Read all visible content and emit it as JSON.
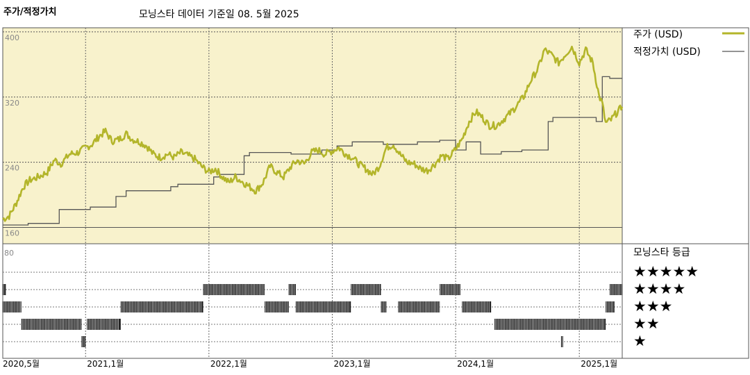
{
  "header": {
    "title": "주가/적정가치",
    "subtitle": "모닝스타 데이터 기준일 08. 5월 2025"
  },
  "legend": {
    "price_label": "주가 (USD)",
    "fair_label": "적정가치 (USD)",
    "rating_title": "모닝스타 등급",
    "rating_levels": [
      "★★★★★",
      "★★★★",
      "★★★",
      "★★",
      "★"
    ]
  },
  "colors": {
    "price": "#b3b52a",
    "fair": "#555555",
    "upper_panel_bg": "#f8f2cc",
    "rating_bar": "#222222"
  },
  "chart_data": [
    {
      "type": "line",
      "title": "",
      "y_ticks": [
        400,
        320,
        240,
        160
      ],
      "ylim": [
        140,
        405
      ],
      "xlim": [
        "2020-05-01",
        "2025-05-08"
      ],
      "x_tick_labels": [
        {
          "date": "2020-05-01",
          "label": "2020,5월"
        },
        {
          "date": "2021-01-01",
          "label": "2021,1월"
        },
        {
          "date": "2022-01-01",
          "label": "2022,1월"
        },
        {
          "date": "2023-01-01",
          "label": "2023,1월"
        },
        {
          "date": "2024-01-01",
          "label": "2024,1월"
        },
        {
          "date": "2025-01-01",
          "label": "2025,1월"
        }
      ],
      "grid": true,
      "series": [
        {
          "name": "주가 (USD)",
          "style": "line",
          "points": [
            [
              "2020-05-01",
              170
            ],
            [
              "2020-05-20",
              174
            ],
            [
              "2020-06-10",
              190
            ],
            [
              "2020-07-01",
              210
            ],
            [
              "2020-07-20",
              218
            ],
            [
              "2020-08-15",
              222
            ],
            [
              "2020-09-10",
              228
            ],
            [
              "2020-10-01",
              243
            ],
            [
              "2020-10-20",
              238
            ],
            [
              "2020-11-15",
              250
            ],
            [
              "2020-12-10",
              252
            ],
            [
              "2021-01-01",
              258
            ],
            [
              "2021-01-20",
              262
            ],
            [
              "2021-02-10",
              272
            ],
            [
              "2021-03-01",
              278
            ],
            [
              "2021-03-20",
              266
            ],
            [
              "2021-04-10",
              268
            ],
            [
              "2021-05-01",
              275
            ],
            [
              "2021-05-20",
              268
            ],
            [
              "2021-06-10",
              265
            ],
            [
              "2021-07-01",
              260
            ],
            [
              "2021-07-20",
              250
            ],
            [
              "2021-08-10",
              246
            ],
            [
              "2021-09-01",
              250
            ],
            [
              "2021-09-20",
              246
            ],
            [
              "2021-10-10",
              252
            ],
            [
              "2021-11-01",
              248
            ],
            [
              "2021-11-20",
              244
            ],
            [
              "2021-12-10",
              235
            ],
            [
              "2022-01-01",
              228
            ],
            [
              "2022-01-20",
              232
            ],
            [
              "2022-02-10",
              222
            ],
            [
              "2022-03-01",
              215
            ],
            [
              "2022-03-20",
              222
            ],
            [
              "2022-04-10",
              216
            ],
            [
              "2022-05-01",
              210
            ],
            [
              "2022-05-20",
              205
            ],
            [
              "2022-06-10",
              215
            ],
            [
              "2022-07-01",
              235
            ],
            [
              "2022-07-20",
              228
            ],
            [
              "2022-08-10",
              222
            ],
            [
              "2022-09-01",
              235
            ],
            [
              "2022-09-20",
              242
            ],
            [
              "2022-10-10",
              238
            ],
            [
              "2022-11-01",
              252
            ],
            [
              "2022-11-20",
              255
            ],
            [
              "2022-12-10",
              250
            ],
            [
              "2023-01-01",
              254
            ],
            [
              "2023-01-20",
              258
            ],
            [
              "2023-02-10",
              250
            ],
            [
              "2023-03-01",
              246
            ],
            [
              "2023-03-20",
              238
            ],
            [
              "2023-04-10",
              232
            ],
            [
              "2023-05-01",
              225
            ],
            [
              "2023-05-20",
              235
            ],
            [
              "2023-06-10",
              258
            ],
            [
              "2023-07-01",
              262
            ],
            [
              "2023-07-20",
              250
            ],
            [
              "2023-08-10",
              240
            ],
            [
              "2023-09-01",
              238
            ],
            [
              "2023-09-20",
              232
            ],
            [
              "2023-10-10",
              230
            ],
            [
              "2023-11-01",
              238
            ],
            [
              "2023-11-20",
              248
            ],
            [
              "2023-12-10",
              244
            ],
            [
              "2024-01-01",
              256
            ],
            [
              "2024-01-20",
              268
            ],
            [
              "2024-02-10",
              290
            ],
            [
              "2024-03-01",
              302
            ],
            [
              "2024-03-20",
              295
            ],
            [
              "2024-04-10",
              285
            ],
            [
              "2024-05-01",
              285
            ],
            [
              "2024-05-20",
              292
            ],
            [
              "2024-06-10",
              300
            ],
            [
              "2024-07-01",
              310
            ],
            [
              "2024-07-20",
              320
            ],
            [
              "2024-08-10",
              340
            ],
            [
              "2024-09-01",
              355
            ],
            [
              "2024-09-20",
              378
            ],
            [
              "2024-10-10",
              372
            ],
            [
              "2024-11-01",
              362
            ],
            [
              "2024-11-20",
              372
            ],
            [
              "2024-12-10",
              382
            ],
            [
              "2025-01-01",
              362
            ],
            [
              "2025-01-20",
              378
            ],
            [
              "2025-02-10",
              362
            ],
            [
              "2025-02-28",
              322
            ],
            [
              "2025-03-10",
              312
            ],
            [
              "2025-03-20",
              288
            ],
            [
              "2025-04-05",
              292
            ],
            [
              "2025-04-20",
              300
            ],
            [
              "2025-05-08",
              308
            ]
          ]
        },
        {
          "name": "적정가치 (USD)",
          "style": "step",
          "points": [
            [
              "2020-05-01",
              163
            ],
            [
              "2020-07-15",
              165
            ],
            [
              "2020-10-15",
              182
            ],
            [
              "2021-01-01",
              182
            ],
            [
              "2021-01-15",
              185
            ],
            [
              "2021-04-01",
              198
            ],
            [
              "2021-05-01",
              205
            ],
            [
              "2021-09-10",
              210
            ],
            [
              "2021-10-01",
              213
            ],
            [
              "2022-01-15",
              222
            ],
            [
              "2022-02-01",
              225
            ],
            [
              "2022-04-15",
              248
            ],
            [
              "2022-05-01",
              252
            ],
            [
              "2022-09-01",
              250
            ],
            [
              "2022-12-01",
              255
            ],
            [
              "2023-01-15",
              260
            ],
            [
              "2023-03-01",
              265
            ],
            [
              "2023-06-01",
              262
            ],
            [
              "2023-09-10",
              265
            ],
            [
              "2023-11-15",
              267
            ],
            [
              "2024-01-01",
              255
            ],
            [
              "2024-02-01",
              265
            ],
            [
              "2024-03-15",
              250
            ],
            [
              "2024-05-15",
              253
            ],
            [
              "2024-07-15",
              255
            ],
            [
              "2024-10-01",
              290
            ],
            [
              "2024-10-15",
              295
            ],
            [
              "2025-02-20",
              290
            ],
            [
              "2025-03-10",
              345
            ],
            [
              "2025-04-01",
              343
            ],
            [
              "2025-05-08",
              343
            ]
          ]
        }
      ]
    },
    {
      "type": "rating_timeline",
      "title": "모닝스타 등급",
      "y_top_label": "80",
      "levels": [
        5,
        4,
        3,
        2,
        1
      ],
      "segments": [
        {
          "rating": 4,
          "start": "2020-05-01",
          "end": "2020-05-10"
        },
        {
          "rating": 3,
          "start": "2020-05-01",
          "end": "2020-06-25"
        },
        {
          "rating": 2,
          "start": "2020-06-25",
          "end": "2020-12-20"
        },
        {
          "rating": 1,
          "start": "2020-12-20",
          "end": "2021-01-01"
        },
        {
          "rating": 2,
          "start": "2021-01-05",
          "end": "2021-04-15"
        },
        {
          "rating": 3,
          "start": "2021-04-15",
          "end": "2021-12-15"
        },
        {
          "rating": 4,
          "start": "2021-12-15",
          "end": "2022-06-15"
        },
        {
          "rating": 3,
          "start": "2022-06-15",
          "end": "2022-08-25"
        },
        {
          "rating": 4,
          "start": "2022-08-25",
          "end": "2022-09-15"
        },
        {
          "rating": 3,
          "start": "2022-09-15",
          "end": "2023-02-25"
        },
        {
          "rating": 4,
          "start": "2023-02-25",
          "end": "2023-05-25"
        },
        {
          "rating": 3,
          "start": "2023-05-25",
          "end": "2023-06-10"
        },
        {
          "rating": 3,
          "start": "2023-07-15",
          "end": "2023-11-15"
        },
        {
          "rating": 4,
          "start": "2023-11-15",
          "end": "2024-01-15"
        },
        {
          "rating": 3,
          "start": "2024-01-20",
          "end": "2024-04-15"
        },
        {
          "rating": 2,
          "start": "2024-04-25",
          "end": "2025-03-20"
        },
        {
          "rating": 1,
          "start": "2024-11-08",
          "end": "2024-11-14"
        },
        {
          "rating": 3,
          "start": "2025-03-20",
          "end": "2025-04-15"
        },
        {
          "rating": 4,
          "start": "2025-04-01",
          "end": "2025-05-08"
        }
      ]
    }
  ]
}
